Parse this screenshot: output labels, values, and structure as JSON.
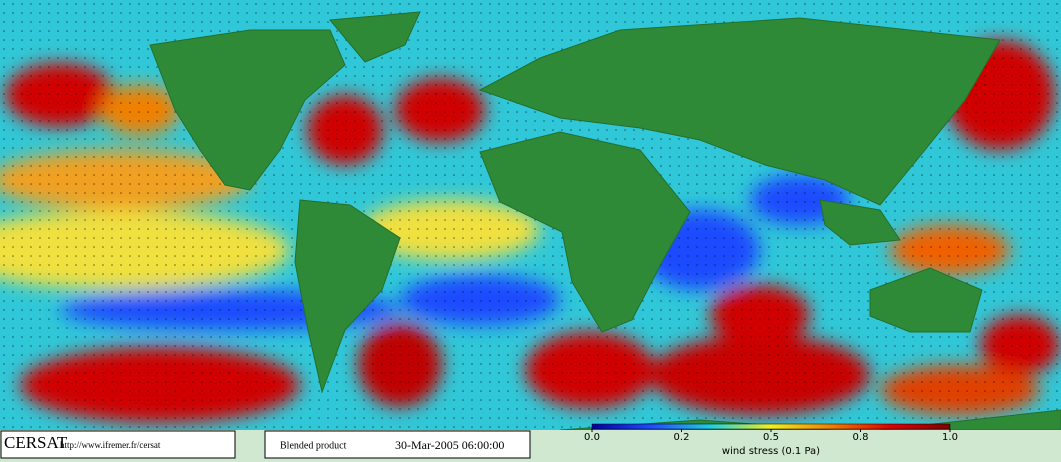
{
  "colorbar": {
    "label": "wind stress (0.1 Pa)",
    "ticks": [
      {
        "value": 0,
        "label": "0.0"
      },
      0.2,
      0.5,
      0.8,
      {
        "value": 1,
        "label": "1.0"
      }
    ],
    "colors": [
      "#0000a0",
      "#1e4cff",
      "#20d0e0",
      "#f0f020",
      "#f08000",
      "#e00000",
      "#800000"
    ]
  },
  "footer": {
    "logo": "CERSAT",
    "url": "http://www.ifremer.fr/cersat",
    "product": "Blended product",
    "date": "30-Mar-2005 06:00:00"
  }
}
